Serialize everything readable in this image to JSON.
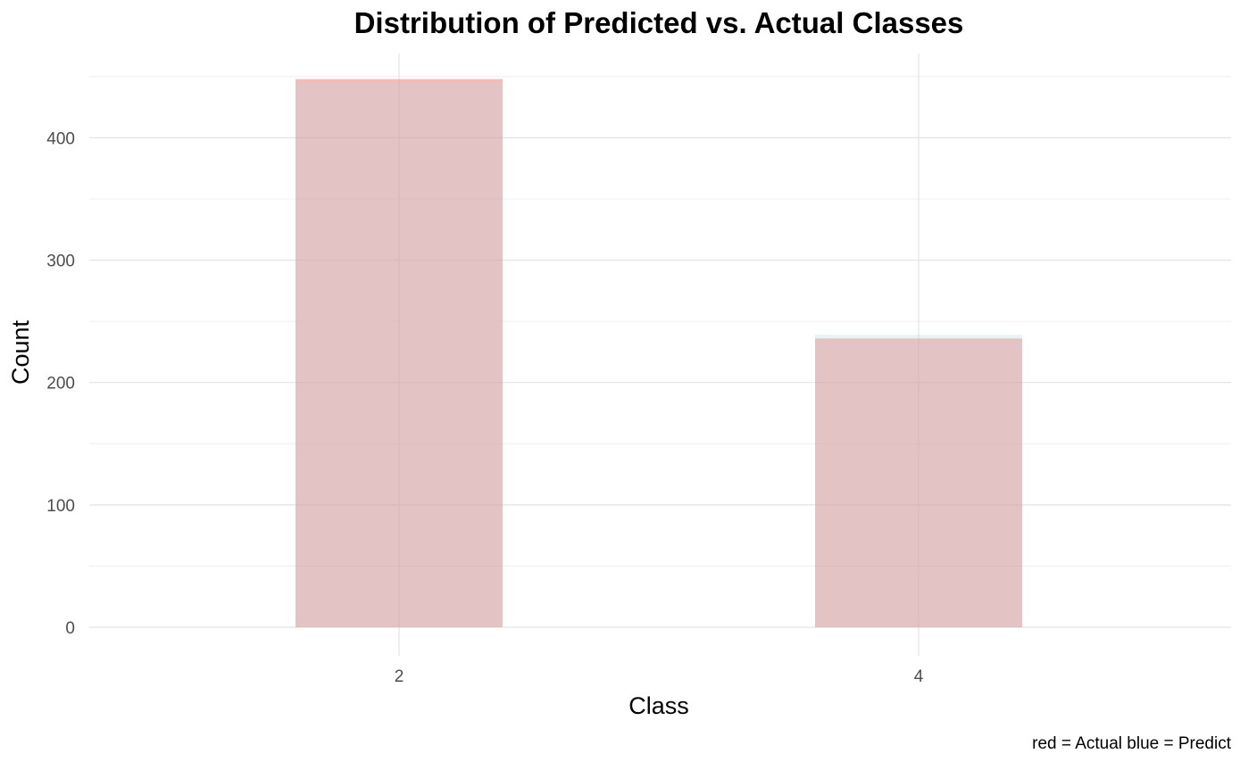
{
  "chart_data": {
    "type": "bar",
    "title": "Distribution of Predicted vs. Actual Classes",
    "xlabel": "Class",
    "ylabel": "Count",
    "caption": "red = Actual blue = Predict",
    "categories": [
      "2",
      "4"
    ],
    "series": [
      {
        "name": "Actual",
        "values": [
          448,
          236
        ],
        "color": "#f8766d",
        "opacity": 0.5
      },
      {
        "name": "Predict",
        "values": [
          446,
          239
        ],
        "color": "#add8e6",
        "opacity": 0.3
      }
    ],
    "ylim": [
      0,
      450
    ],
    "yticks": [
      0,
      100,
      200,
      300,
      400
    ],
    "grid": true,
    "legend": "none"
  }
}
